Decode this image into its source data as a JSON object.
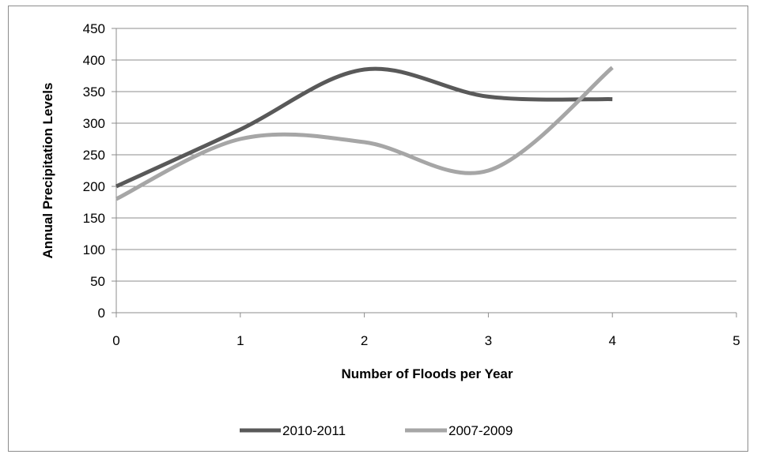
{
  "chart_data": {
    "type": "line",
    "smoothed": true,
    "title": "",
    "xlabel": "Number of Floods per Year",
    "ylabel": "Annual Precipitation Levels",
    "xlim": [
      0,
      5
    ],
    "ylim": [
      0,
      450
    ],
    "xticks": [
      0,
      1,
      2,
      3,
      4,
      5
    ],
    "yticks": [
      0,
      50,
      100,
      150,
      200,
      250,
      300,
      350,
      400,
      450
    ],
    "grid": "horizontal",
    "legend": "bottom",
    "series": [
      {
        "name": "2010-2011",
        "color": "#595959",
        "x": [
          0,
          1,
          2,
          3,
          4
        ],
        "y": [
          200,
          290,
          385,
          342,
          338
        ]
      },
      {
        "name": "2007-2009",
        "color": "#a6a6a6",
        "x": [
          0,
          1,
          2,
          3,
          4
        ],
        "y": [
          180,
          275,
          270,
          225,
          388
        ]
      }
    ]
  }
}
